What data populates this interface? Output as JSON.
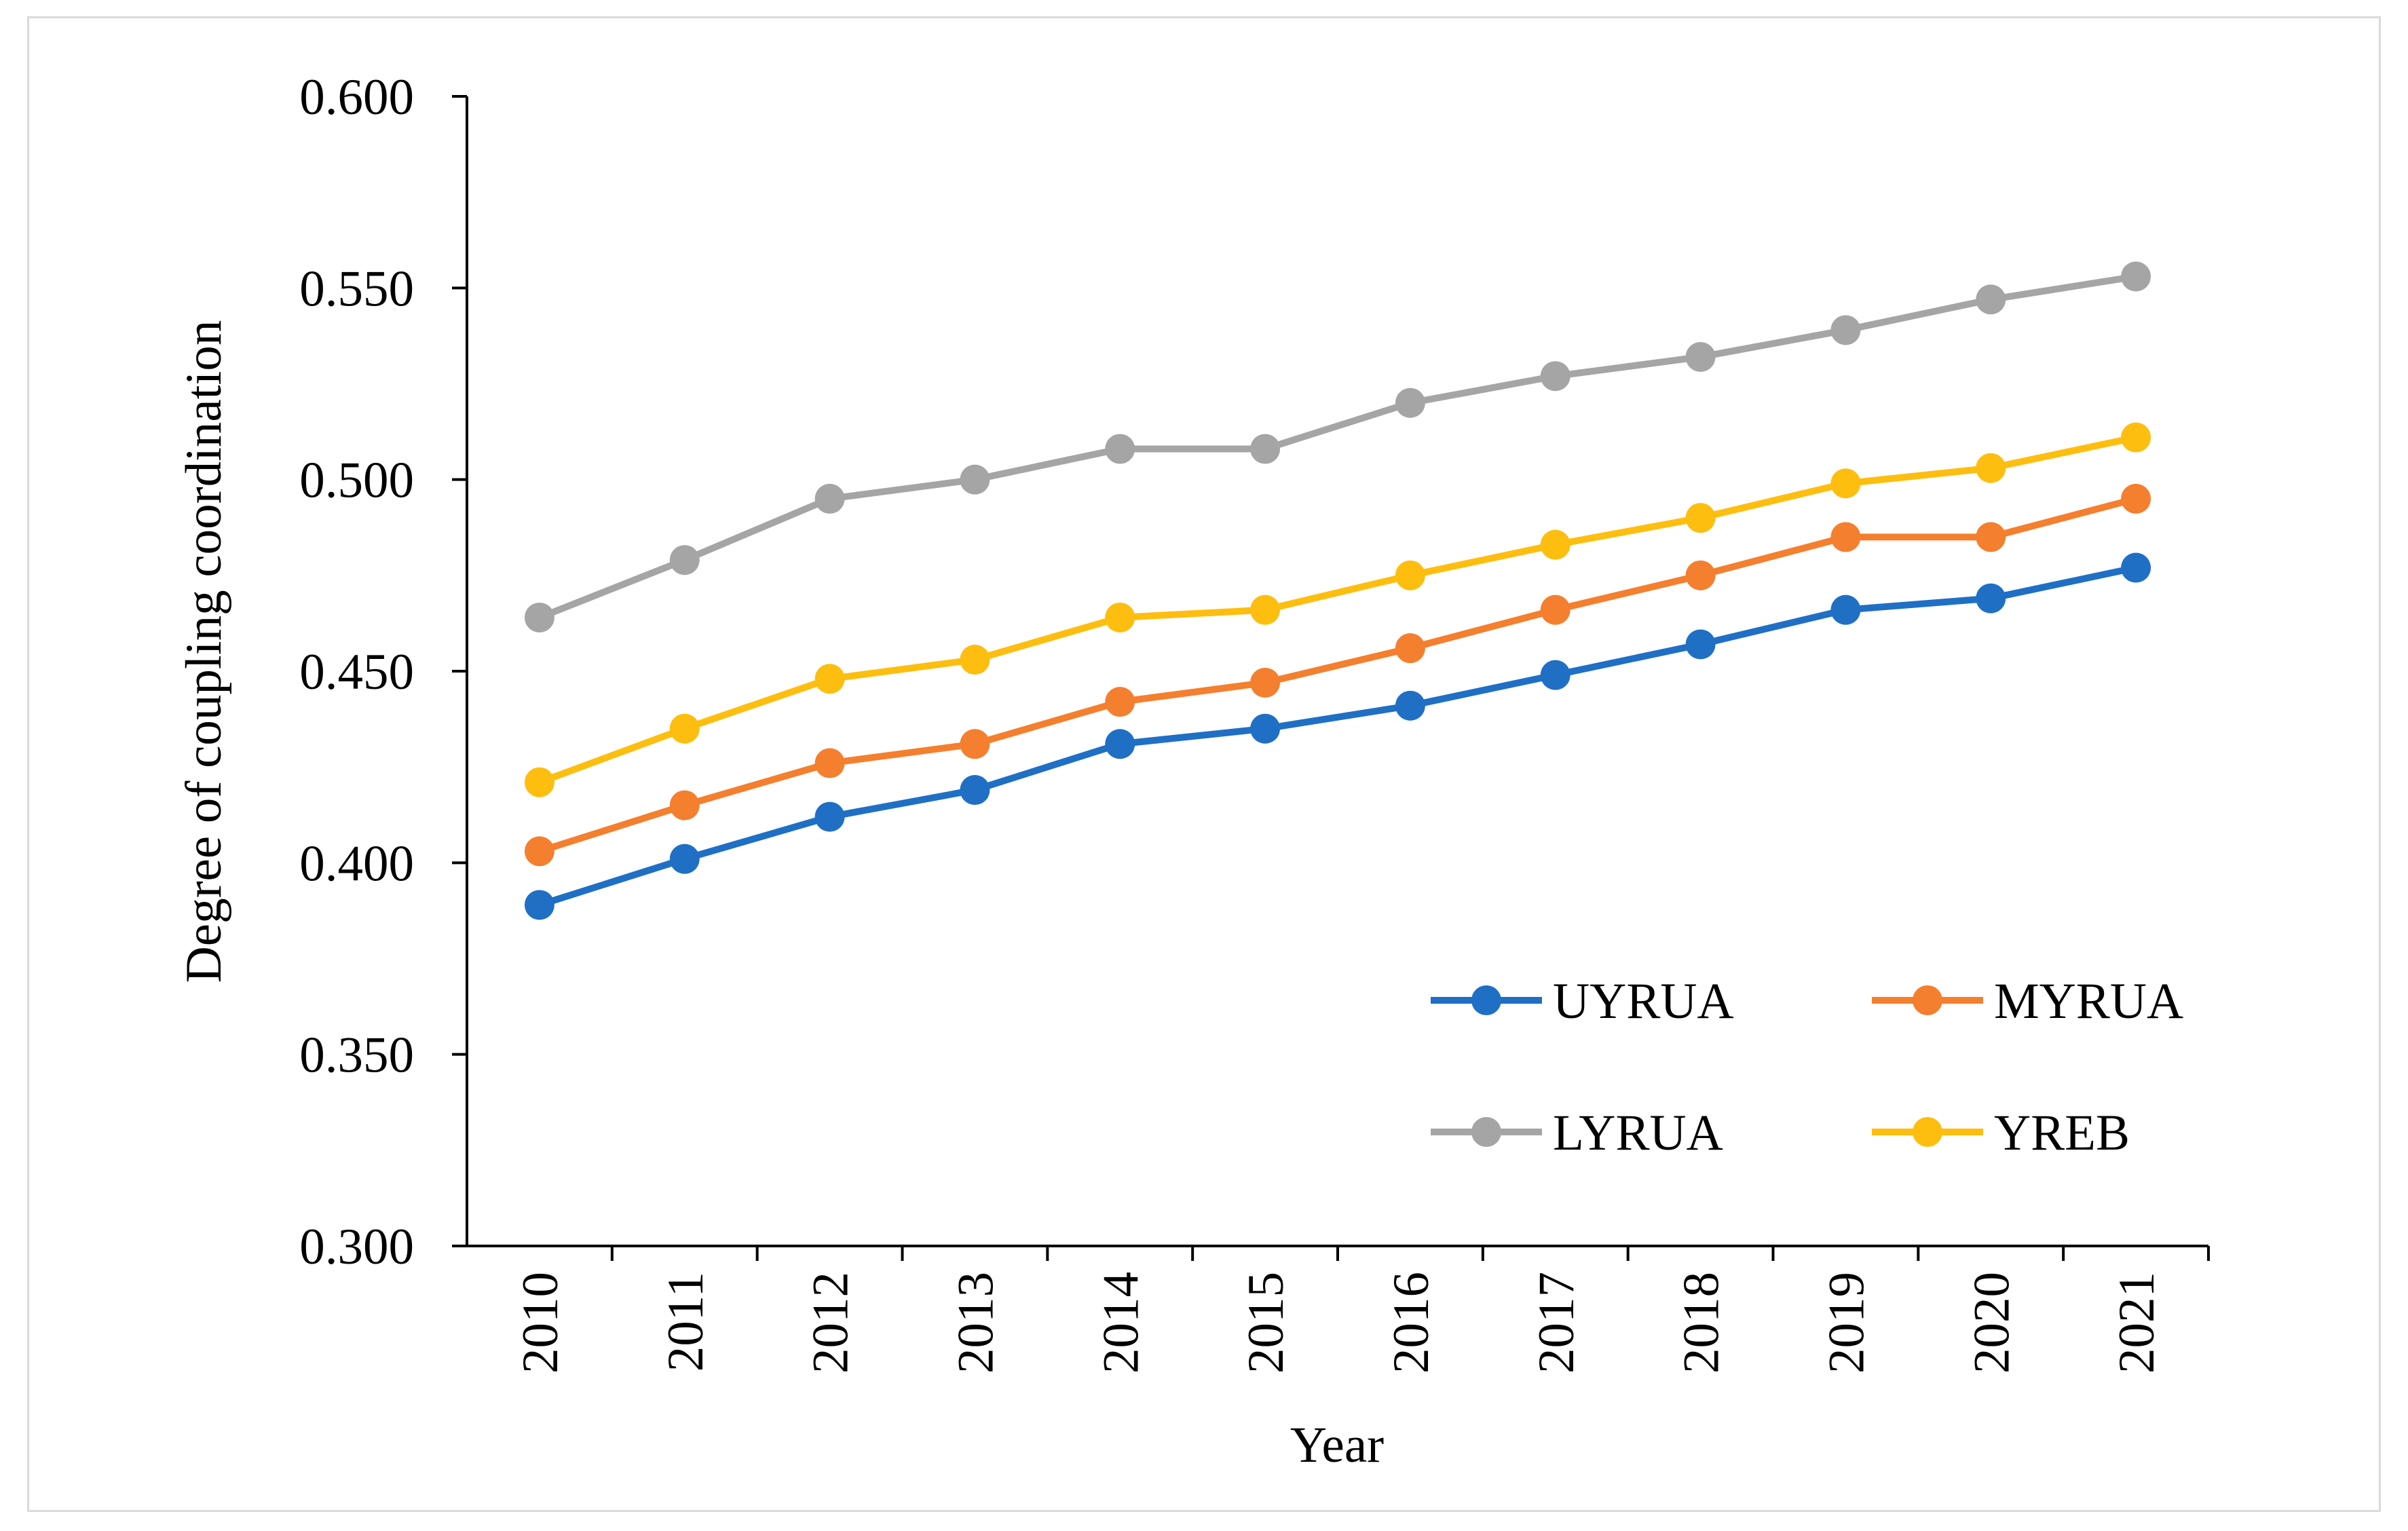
{
  "chart_data": {
    "type": "line",
    "title": "",
    "xlabel": "Year",
    "ylabel": "Degree of coupling coordination",
    "categories": [
      "2010",
      "2011",
      "2012",
      "2013",
      "2014",
      "2015",
      "2016",
      "2017",
      "2018",
      "2019",
      "2020",
      "2021"
    ],
    "ylim": [
      0.3,
      0.6
    ],
    "yticks": [
      0.3,
      0.35,
      0.4,
      0.45,
      0.5,
      0.55,
      0.6
    ],
    "ytick_labels": [
      "0.300",
      "0.350",
      "0.400",
      "0.450",
      "0.500",
      "0.550",
      "0.600"
    ],
    "grid": false,
    "legend_position": "bottom-right",
    "series": [
      {
        "name": "UYRUA",
        "color": "#1f6fc5",
        "values": [
          0.389,
          0.401,
          0.412,
          0.419,
          0.431,
          0.435,
          0.441,
          0.449,
          0.457,
          0.466,
          0.469,
          0.477
        ]
      },
      {
        "name": "MYRUA",
        "color": "#f47f2e",
        "values": [
          0.403,
          0.415,
          0.426,
          0.431,
          0.442,
          0.447,
          0.456,
          0.466,
          0.475,
          0.485,
          0.485,
          0.495
        ]
      },
      {
        "name": "LYRUA",
        "color": "#a5a5a5",
        "values": [
          0.464,
          0.479,
          0.495,
          0.5,
          0.508,
          0.508,
          0.52,
          0.527,
          0.532,
          0.539,
          0.547,
          0.553
        ]
      },
      {
        "name": "YREB",
        "color": "#fdbe0f",
        "values": [
          0.421,
          0.435,
          0.448,
          0.453,
          0.464,
          0.466,
          0.475,
          0.483,
          0.49,
          0.499,
          0.503,
          0.511
        ]
      }
    ]
  }
}
